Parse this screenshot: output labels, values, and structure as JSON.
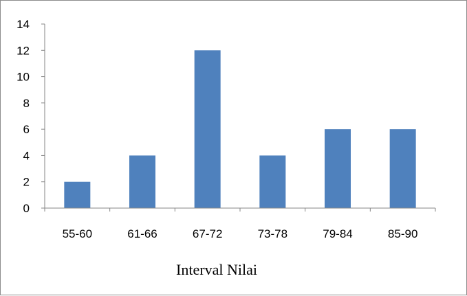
{
  "chart_data": {
    "type": "bar",
    "title": "",
    "xlabel": "Interval Nilai",
    "ylabel": "",
    "categories": [
      "55-60",
      "61-66",
      "67-72",
      "73-78",
      "79-84",
      "85-90"
    ],
    "values": [
      2,
      4,
      12,
      4,
      6,
      6
    ],
    "ylim": [
      0,
      14
    ],
    "yticks": [
      0,
      2,
      4,
      6,
      8,
      10,
      12,
      14
    ],
    "grid": false,
    "legend": "none",
    "bar_color": "#4f81bd",
    "axis_color": "#868686"
  }
}
